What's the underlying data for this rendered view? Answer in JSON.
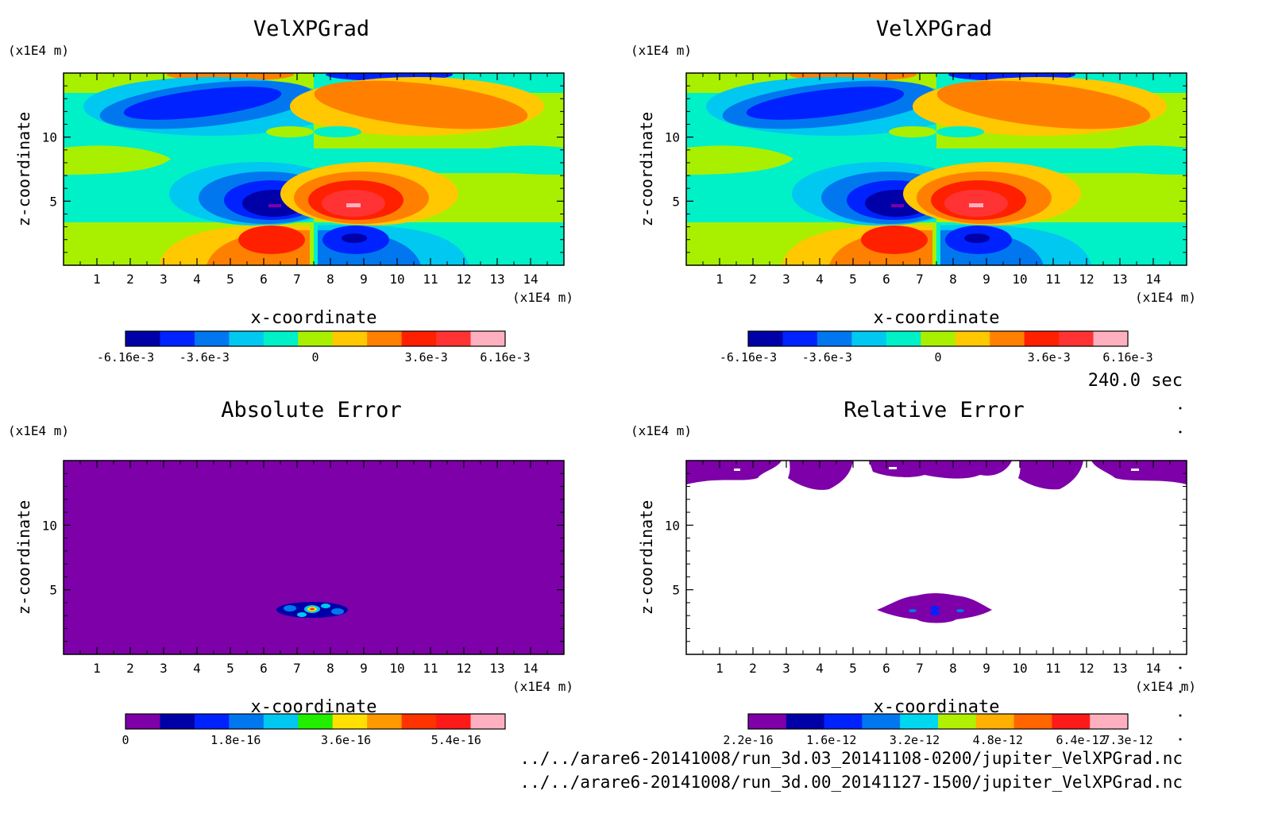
{
  "palette": {
    "field": [
      "#0000a8",
      "#0022ff",
      "#0077ee",
      "#00c8f0",
      "#00f0c8",
      "#a8f000",
      "#ffc800",
      "#ff8000",
      "#ff2000",
      "#ff3333",
      "#ffb0c0"
    ],
    "abs_error": [
      "#7d00a8",
      "#0000a8",
      "#0022ff",
      "#0077ee",
      "#00c8f0",
      "#22ee00",
      "#ffe000",
      "#ff9900",
      "#ff3300",
      "#ff1a1a",
      "#ffb0c0"
    ],
    "rel_error": [
      "#7d00a8",
      "#0000a8",
      "#0022ff",
      "#0077ee",
      "#00d8f0",
      "#b0f000",
      "#ffb000",
      "#ff6600",
      "#ff1a1a",
      "#ffb0c0"
    ],
    "field_bg": "#00f0c8",
    "error_bg": "#7d00a8"
  },
  "timestamp": "240.0 sec",
  "footer": {
    "line1": "../../arare6-20141008/run_3d.03_20141108-0200/jupiter_VelXPGrad.nc",
    "line2": "../../arare6-20141008/run_3d.00_20141127-1500/jupiter_VelXPGrad.nc"
  },
  "chart_data": [
    {
      "type": "heatmap",
      "title": "VelXPGrad",
      "xlabel": "x-coordinate",
      "ylabel": "z-coordinate",
      "x_unit": "(x1E4 m)",
      "y_unit": "(x1E4 m)",
      "xlim": [
        0,
        15
      ],
      "ylim": [
        0,
        15
      ],
      "x_ticks": [
        "1",
        "2",
        "3",
        "4",
        "5",
        "6",
        "7",
        "8",
        "9",
        "10",
        "11",
        "12",
        "13",
        "14"
      ],
      "y_ticks": [
        "5",
        "10"
      ],
      "colorbar_labels": [
        "-6.16e-3",
        "-3.6e-3",
        "0",
        "3.6e-3",
        "6.16e-3"
      ],
      "colorbar_min": -0.00616,
      "colorbar_max": 0.00616
    },
    {
      "type": "heatmap",
      "title": "VelXPGrad",
      "xlabel": "x-coordinate",
      "ylabel": "z-coordinate",
      "x_unit": "(x1E4 m)",
      "y_unit": "(x1E4 m)",
      "xlim": [
        0,
        15
      ],
      "ylim": [
        0,
        15
      ],
      "x_ticks": [
        "1",
        "2",
        "3",
        "4",
        "5",
        "6",
        "7",
        "8",
        "9",
        "10",
        "11",
        "12",
        "13",
        "14"
      ],
      "y_ticks": [
        "5",
        "10"
      ],
      "colorbar_labels": [
        "-6.16e-3",
        "-3.6e-3",
        "0",
        "3.6e-3",
        "6.16e-3"
      ],
      "colorbar_min": -0.00616,
      "colorbar_max": 0.00616
    },
    {
      "type": "heatmap",
      "title": "Absolute Error",
      "xlabel": "x-coordinate",
      "ylabel": "z-coordinate",
      "x_unit": "(x1E4 m)",
      "y_unit": "(x1E4 m)",
      "xlim": [
        0,
        15
      ],
      "ylim": [
        0,
        15
      ],
      "x_ticks": [
        "1",
        "2",
        "3",
        "4",
        "5",
        "6",
        "7",
        "8",
        "9",
        "10",
        "11",
        "12",
        "13",
        "14"
      ],
      "y_ticks": [
        "5",
        "10"
      ],
      "colorbar_labels": [
        "0",
        "1.8e-16",
        "3.6e-16",
        "5.4e-16"
      ],
      "colorbar_min": 0,
      "colorbar_max": 6.2e-16
    },
    {
      "type": "heatmap",
      "title": "Relative Error",
      "xlabel": "x-coordinate",
      "ylabel": "z-coordinate",
      "x_unit": "(x1E4 m)",
      "y_unit": "(x1E4 m)",
      "xlim": [
        0,
        15
      ],
      "ylim": [
        0,
        15
      ],
      "x_ticks": [
        "1",
        "2",
        "3",
        "4",
        "5",
        "6",
        "7",
        "8",
        "9",
        "10",
        "11",
        "12",
        "13",
        "14"
      ],
      "y_ticks": [
        "5",
        "10"
      ],
      "colorbar_labels": [
        "2.2e-16",
        "1.6e-12",
        "3.2e-12",
        "4.8e-12",
        "6.4e-12",
        "7.3e-12"
      ],
      "colorbar_min": 2.2e-16,
      "colorbar_max": 7.3e-12
    }
  ]
}
